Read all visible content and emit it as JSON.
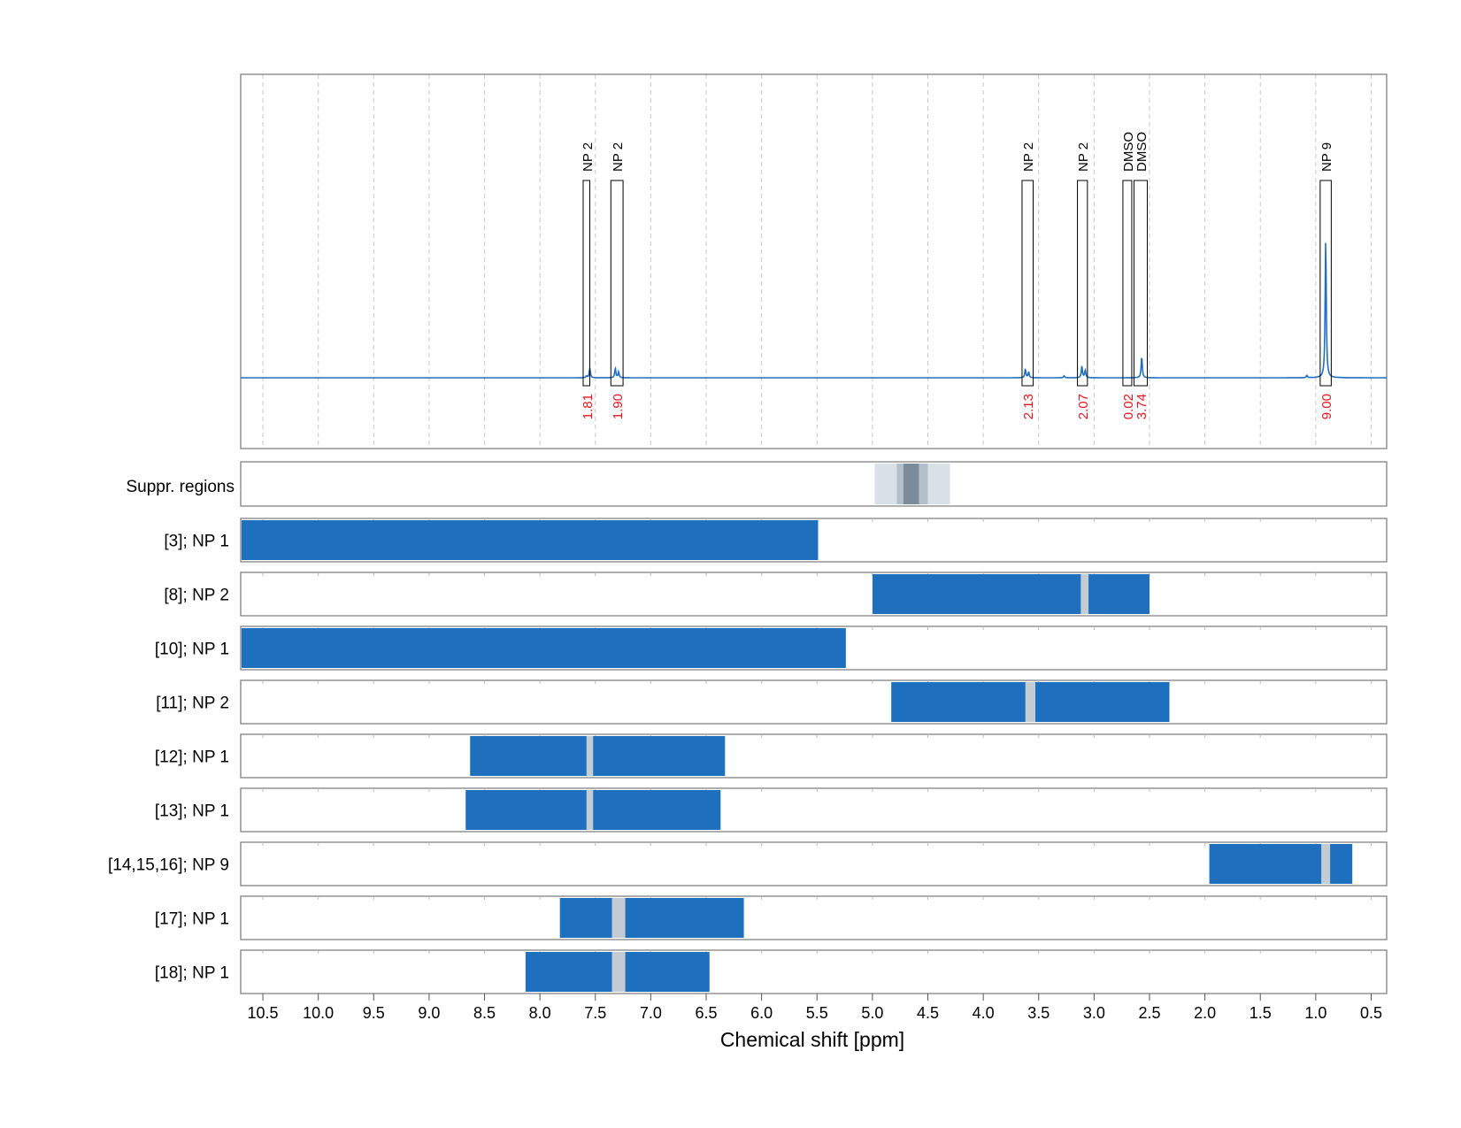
{
  "chart_data": {
    "type": "nmr-spectrum-with-range-bars",
    "x_label": "Chemical shift [ppm]",
    "x_range": [
      10.7,
      0.36
    ],
    "x_reversed": true,
    "x_ticks": [
      10.5,
      10.0,
      9.5,
      9.0,
      8.5,
      8.0,
      7.5,
      7.0,
      6.5,
      6.0,
      5.5,
      5.0,
      4.5,
      4.0,
      3.5,
      3.0,
      2.5,
      2.0,
      1.5,
      1.0,
      0.5
    ],
    "x_tick_labels": [
      "10.5",
      "10.0",
      "9.5",
      "9.0",
      "8.5",
      "8.0",
      "7.5",
      "7.0",
      "6.5",
      "6.0",
      "5.5",
      "5.0",
      "4.5",
      "4.0",
      "3.5",
      "3.0",
      "2.5",
      "2.0",
      "1.5",
      "1.0",
      "0.5"
    ],
    "grid": "vertical dashed",
    "series_color": "#1f6fbf",
    "spectrum_peaks": [
      {
        "ppm": 7.58,
        "height": 0.01
      },
      {
        "ppm": 7.55,
        "height": 0.05
      },
      {
        "ppm": 7.32,
        "height": 0.05
      },
      {
        "ppm": 7.29,
        "height": 0.03
      },
      {
        "ppm": 3.62,
        "height": 0.045
      },
      {
        "ppm": 3.59,
        "height": 0.03
      },
      {
        "ppm": 3.27,
        "height": 0.01
      },
      {
        "ppm": 3.11,
        "height": 0.06
      },
      {
        "ppm": 3.08,
        "height": 0.04
      },
      {
        "ppm": 2.57,
        "height": 0.11
      },
      {
        "ppm": 1.08,
        "height": 0.012
      },
      {
        "ppm": 0.91,
        "height": 0.72
      }
    ],
    "integrals": [
      {
        "label": "NP 2",
        "value": "1.81",
        "from": 7.61,
        "to": 7.55
      },
      {
        "label": "NP 2",
        "value": "1.90",
        "from": 7.36,
        "to": 7.25
      },
      {
        "label": "NP 2",
        "value": "2.13",
        "from": 3.65,
        "to": 3.55
      },
      {
        "label": "NP 2",
        "value": "2.07",
        "from": 3.15,
        "to": 3.06
      },
      {
        "label": "DMSO",
        "value": "0.02",
        "from": 2.74,
        "to": 2.66
      },
      {
        "label": "DMSO",
        "value": "3.74",
        "from": 2.64,
        "to": 2.52
      },
      {
        "label": "NP 9",
        "value": "9.00",
        "from": 0.96,
        "to": 0.86
      }
    ],
    "suppressed_regions": [
      {
        "from": 4.98,
        "to": 4.3,
        "shade": "light"
      },
      {
        "from": 4.78,
        "to": 4.5,
        "shade": "mid"
      },
      {
        "from": 4.72,
        "to": 4.58,
        "shade": "dark"
      }
    ],
    "suppressed_label": "Suppr. regions",
    "range_rows": [
      {
        "label": "[3]; NP 1",
        "from": 10.7,
        "to": 5.49,
        "gaps": []
      },
      {
        "label": "[8]; NP 2",
        "from": 5.0,
        "to": 2.5,
        "gaps": [
          [
            3.12,
            3.05
          ]
        ]
      },
      {
        "label": "[10]; NP 1",
        "from": 10.7,
        "to": 5.24,
        "gaps": []
      },
      {
        "label": "[11]; NP 2",
        "from": 4.83,
        "to": 2.32,
        "gaps": [
          [
            3.62,
            3.53
          ]
        ]
      },
      {
        "label": "[12]; NP 1",
        "from": 8.63,
        "to": 6.33,
        "gaps": [
          [
            7.58,
            7.52
          ]
        ]
      },
      {
        "label": "[13]; NP 1",
        "from": 8.67,
        "to": 6.37,
        "gaps": [
          [
            7.58,
            7.52
          ]
        ]
      },
      {
        "label": "[14,15,16]; NP 9",
        "from": 1.96,
        "to": 0.67,
        "gaps": [
          [
            0.95,
            0.87
          ]
        ]
      },
      {
        "label": "[17]; NP 1",
        "from": 7.82,
        "to": 6.16,
        "gaps": [
          [
            7.35,
            7.23
          ]
        ]
      },
      {
        "label": "[18]; NP 1",
        "from": 8.13,
        "to": 6.47,
        "gaps": [
          [
            7.35,
            7.23
          ]
        ]
      }
    ]
  }
}
